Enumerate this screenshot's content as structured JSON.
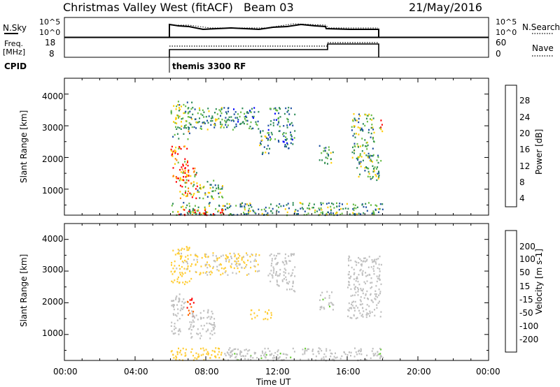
{
  "header": {
    "title": "Christmas Valley West (fitACF)",
    "beam": "Beam 03",
    "date": "21/May/2016"
  },
  "top_panels": {
    "nsky_label": "N.Sky",
    "nsky_left_ticks": [
      "10^5",
      "10^0"
    ],
    "nsky_right_ticks": [
      "10^5",
      "10^0"
    ],
    "nsearch_label": "N.Search",
    "freq_label": [
      "Freq.",
      "[MHz]"
    ],
    "freq_left_ticks": [
      "18",
      "8"
    ],
    "freq_right_ticks": [
      "60",
      "0"
    ],
    "nave_label": "Nave",
    "cpid_label": "CPID",
    "cpid_value": "themis 3300 RF"
  },
  "time_axis": {
    "label": "Time UT",
    "ticks": [
      "00:00",
      "04:00",
      "08:00",
      "12:00",
      "16:00",
      "20:00",
      "00:00"
    ],
    "range_hours": [
      0,
      24
    ],
    "data_start_hour": 6.0,
    "data_end_hour": 18.0
  },
  "chart_data": [
    {
      "type": "heatmap",
      "title": "",
      "xlabel": "Time UT",
      "ylabel": "Slant Range [km]",
      "xlim": [
        0,
        24
      ],
      "ylim": [
        180,
        4500
      ],
      "y_ticks": [
        "1000",
        "2000",
        "3000",
        "4000"
      ],
      "colorbar": {
        "label": "Power [dB]",
        "ticks": [
          "28",
          "24",
          "20",
          "16",
          "12",
          "8",
          "4"
        ],
        "range": [
          0,
          30
        ],
        "colors": [
          "#0000ff",
          "#1c4fa0",
          "#2e8b57",
          "#66bb44",
          "#ffcc00",
          "#ff8800",
          "#ff0000"
        ]
      },
      "regions": [
        {
          "t": [
            6.0,
            7.2
          ],
          "r": [
            2600,
            3800
          ],
          "level": 14
        },
        {
          "t": [
            6.0,
            7.0
          ],
          "r": [
            1200,
            2400
          ],
          "level": 26
        },
        {
          "t": [
            6.5,
            7.5
          ],
          "r": [
            700,
            1700
          ],
          "level": 22
        },
        {
          "t": [
            7.2,
            9.0
          ],
          "r": [
            2900,
            3600
          ],
          "level": 12
        },
        {
          "t": [
            9.0,
            11.0
          ],
          "r": [
            2900,
            3600
          ],
          "level": 10
        },
        {
          "t": [
            7.5,
            9.0
          ],
          "r": [
            700,
            1300
          ],
          "level": 14
        },
        {
          "t": [
            11.0,
            11.6
          ],
          "r": [
            2100,
            2900
          ],
          "level": 12
        },
        {
          "t": [
            11.5,
            12.2
          ],
          "r": [
            2500,
            3600
          ],
          "level": 10
        },
        {
          "t": [
            12.3,
            13.0
          ],
          "r": [
            2300,
            3600
          ],
          "level": 9
        },
        {
          "t": [
            14.4,
            15.2
          ],
          "r": [
            1800,
            2400
          ],
          "level": 12
        },
        {
          "t": [
            16.2,
            17.5
          ],
          "r": [
            2000,
            3400
          ],
          "level": 14
        },
        {
          "t": [
            16.5,
            17.9
          ],
          "r": [
            1300,
            2100
          ],
          "level": 13
        },
        {
          "t": [
            17.7,
            18.0
          ],
          "r": [
            2800,
            3200
          ],
          "level": 24
        },
        {
          "t": [
            6.0,
            18.0
          ],
          "r": [
            200,
            600
          ],
          "level": 12
        },
        {
          "t": [
            6.0,
            9.0
          ],
          "r": [
            200,
            400
          ],
          "level": 26
        }
      ]
    },
    {
      "type": "heatmap",
      "title": "",
      "xlabel": "Time UT",
      "ylabel": "Slant Range [km]",
      "xlim": [
        0,
        24
      ],
      "ylim": [
        180,
        4500
      ],
      "y_ticks": [
        "1000",
        "2000",
        "3000",
        "4000"
      ],
      "colorbar": {
        "label": "Velocity [m s-1]",
        "ticks": [
          "200",
          "100",
          "50",
          "15",
          "-15",
          "-50",
          "-100",
          "-200"
        ],
        "range": [
          -250,
          250
        ],
        "colors": [
          "#ff0000",
          "#ff6600",
          "#ff9900",
          "#ffcc33",
          "#c0c0c0",
          "#66cc33",
          "#2e8b57",
          "#1c4fa0",
          "#0000cc"
        ]
      },
      "regions": [
        {
          "t": [
            6.0,
            7.2
          ],
          "r": [
            2600,
            3800
          ],
          "level": -40
        },
        {
          "t": [
            6.0,
            6.8
          ],
          "r": [
            1000,
            2300
          ],
          "level": 0
        },
        {
          "t": [
            6.9,
            7.3
          ],
          "r": [
            1600,
            2300
          ],
          "level": -200
        },
        {
          "t": [
            7.0,
            8.5
          ],
          "r": [
            900,
            1800
          ],
          "level": 0
        },
        {
          "t": [
            7.2,
            11.0
          ],
          "r": [
            2900,
            3600
          ],
          "level": -30
        },
        {
          "t": [
            10.5,
            11.7
          ],
          "r": [
            1500,
            1800
          ],
          "level": -60
        },
        {
          "t": [
            11.5,
            12.2
          ],
          "r": [
            2500,
            3600
          ],
          "level": 0
        },
        {
          "t": [
            12.3,
            13.0
          ],
          "r": [
            2300,
            3600
          ],
          "level": 0
        },
        {
          "t": [
            14.4,
            15.2
          ],
          "r": [
            1800,
            2400
          ],
          "level": 20
        },
        {
          "t": [
            16.0,
            17.9
          ],
          "r": [
            1500,
            3500
          ],
          "level": 0
        },
        {
          "t": [
            6.0,
            9.0
          ],
          "r": [
            200,
            600
          ],
          "level": -60
        },
        {
          "t": [
            9.0,
            18.0
          ],
          "r": [
            200,
            600
          ],
          "level": 20
        }
      ]
    }
  ]
}
